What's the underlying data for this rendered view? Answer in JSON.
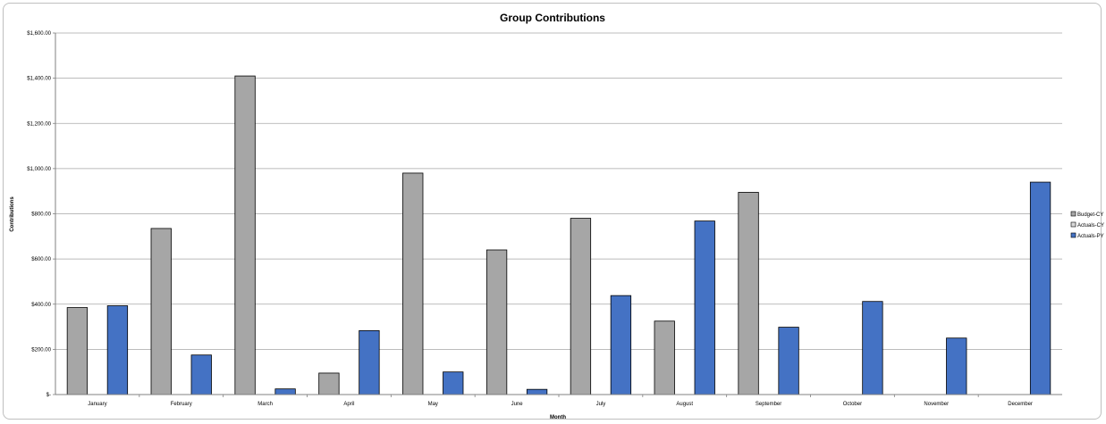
{
  "chart_data": {
    "type": "bar",
    "title": "Group Contributions",
    "xlabel": "Month",
    "ylabel": "Contributions",
    "categories": [
      "January",
      "February",
      "March",
      "April",
      "May",
      "June",
      "July",
      "August",
      "September",
      "October",
      "November",
      "December"
    ],
    "ylim": [
      0,
      1600
    ],
    "ytick_values": [
      0,
      200,
      400,
      600,
      800,
      1000,
      1200,
      1400,
      1600
    ],
    "ytick_labels": [
      "$-",
      "$200.00",
      "$400.00",
      "$600.00",
      "$800.00",
      "$1,000.00",
      "$1,200.00",
      "$1,400.00",
      "$1,600.00"
    ],
    "grid": true,
    "legend_position": "right",
    "series": [
      {
        "name": "Budget-CY",
        "color": "#a6a6a6",
        "values": [
          385,
          735,
          1410,
          95,
          980,
          640,
          780,
          325,
          895,
          null,
          null,
          null
        ]
      },
      {
        "name": "Actuals-CY",
        "color": "#d9d9d9",
        "values": [
          null,
          null,
          null,
          null,
          null,
          null,
          null,
          null,
          null,
          null,
          null,
          null
        ]
      },
      {
        "name": "Actuals-PY",
        "color": "#4472c4",
        "values": [
          393,
          175,
          25,
          283,
          100,
          23,
          438,
          768,
          298,
          412,
          250,
          940
        ]
      }
    ]
  }
}
